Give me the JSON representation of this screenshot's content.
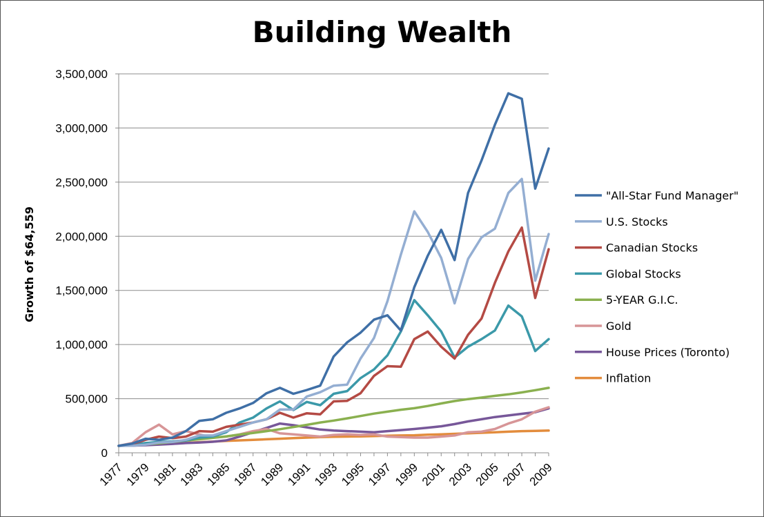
{
  "chart_data": {
    "type": "line",
    "title": "Building Wealth",
    "ylabel": "Growth of $64,559",
    "xlabel": "",
    "ylim": [
      0,
      3500000
    ],
    "yticks": [
      0,
      500000,
      1000000,
      1500000,
      2000000,
      2500000,
      3000000,
      3500000
    ],
    "ytick_labels": [
      "0",
      "500,000",
      "1,000,000",
      "1,500,000",
      "2,000,000",
      "2,500,000",
      "3,000,000",
      "3,500,000"
    ],
    "xtick_labels": [
      "1977",
      "1979",
      "1981",
      "1983",
      "1985",
      "1987",
      "1989",
      "1991",
      "1993",
      "1995",
      "1997",
      "1999",
      "2001",
      "2003",
      "2005",
      "2007",
      "2009"
    ],
    "grid": "horizontal",
    "legend_position": "right",
    "x": [
      1977,
      1978,
      1979,
      1980,
      1981,
      1982,
      1983,
      1984,
      1985,
      1986,
      1987,
      1988,
      1989,
      1990,
      1991,
      1992,
      1993,
      1994,
      1995,
      1996,
      1997,
      1998,
      1999,
      2000,
      2001,
      2002,
      2003,
      2004,
      2005,
      2006,
      2007,
      2008,
      2009
    ],
    "series": [
      {
        "name": "\"All-Star Fund Manager\"",
        "color": "#3f6fa6",
        "values": [
          64559,
          85000,
          130000,
          120000,
          140000,
          200000,
          295000,
          310000,
          370000,
          410000,
          460000,
          550000,
          600000,
          545000,
          580000,
          620000,
          890000,
          1020000,
          1110000,
          1230000,
          1270000,
          1130000,
          1530000,
          1820000,
          2060000,
          1780000,
          2400000,
          2700000,
          3030000,
          3320000,
          3270000,
          2440000,
          2810000
        ]
      },
      {
        "name": "U.S. Stocks",
        "color": "#94aed2",
        "values": [
          64559,
          65000,
          75000,
          95000,
          100000,
          120000,
          160000,
          160000,
          200000,
          240000,
          280000,
          310000,
          400000,
          400000,
          520000,
          560000,
          620000,
          630000,
          870000,
          1060000,
          1400000,
          1830000,
          2230000,
          2040000,
          1800000,
          1380000,
          1790000,
          1990000,
          2070000,
          2400000,
          2530000,
          1590000,
          2020000
        ]
      },
      {
        "name": "Canadian Stocks",
        "color": "#b44a44",
        "values": [
          64559,
          80000,
          120000,
          150000,
          135000,
          150000,
          200000,
          195000,
          240000,
          260000,
          280000,
          310000,
          370000,
          325000,
          365000,
          355000,
          475000,
          480000,
          550000,
          710000,
          800000,
          795000,
          1050000,
          1120000,
          980000,
          870000,
          1090000,
          1240000,
          1570000,
          1860000,
          2080000,
          1430000,
          1880000
        ]
      },
      {
        "name": "Global Stocks",
        "color": "#3b99a9",
        "values": [
          64559,
          75000,
          90000,
          100000,
          105000,
          115000,
          140000,
          150000,
          190000,
          280000,
          325000,
          410000,
          475000,
          395000,
          470000,
          440000,
          545000,
          570000,
          690000,
          770000,
          900000,
          1120000,
          1410000,
          1270000,
          1120000,
          880000,
          980000,
          1050000,
          1130000,
          1360000,
          1260000,
          940000,
          1050000
        ]
      },
      {
        "name": "5-YEAR G.I.C.",
        "color": "#8ab04f",
        "values": [
          64559,
          70000,
          78000,
          88000,
          100000,
          113000,
          125000,
          138000,
          152000,
          168000,
          183000,
          200000,
          218000,
          238000,
          258000,
          280000,
          298000,
          318000,
          340000,
          362000,
          380000,
          398000,
          412000,
          432000,
          456000,
          478000,
          496000,
          510000,
          526000,
          540000,
          558000,
          578000,
          600000
        ]
      },
      {
        "name": "Gold",
        "color": "#d79597",
        "values": [
          64559,
          90000,
          190000,
          260000,
          170000,
          200000,
          170000,
          140000,
          150000,
          170000,
          200000,
          220000,
          180000,
          170000,
          160000,
          150000,
          165000,
          170000,
          165000,
          170000,
          150000,
          145000,
          140000,
          140000,
          150000,
          160000,
          190000,
          195000,
          220000,
          270000,
          310000,
          380000,
          420000
        ]
      },
      {
        "name": "House Prices (Toronto)",
        "color": "#775799",
        "values": [
          64559,
          66000,
          70000,
          76000,
          82000,
          90000,
          95000,
          102000,
          115000,
          150000,
          190000,
          230000,
          270000,
          255000,
          235000,
          215000,
          205000,
          200000,
          195000,
          190000,
          200000,
          210000,
          220000,
          232000,
          245000,
          265000,
          290000,
          310000,
          330000,
          345000,
          360000,
          375000,
          410000
        ]
      },
      {
        "name": "Inflation",
        "color": "#e38c3c",
        "values": [
          64559,
          68000,
          74000,
          80000,
          86000,
          92000,
          98000,
          104000,
          110000,
          115000,
          120000,
          125000,
          130000,
          135000,
          140000,
          145000,
          148000,
          150000,
          152000,
          155000,
          158000,
          160000,
          162000,
          167000,
          170000,
          175000,
          180000,
          185000,
          190000,
          195000,
          200000,
          203000,
          205000
        ]
      }
    ]
  }
}
